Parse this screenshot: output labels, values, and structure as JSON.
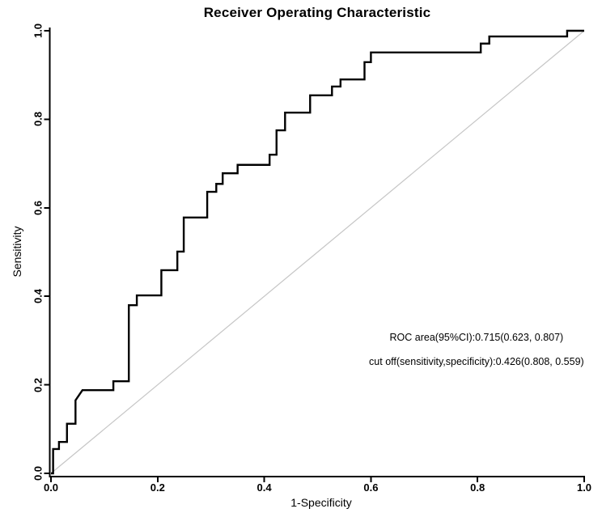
{
  "chart_data": {
    "type": "line",
    "title": "Receiver Operating Characteristic",
    "xlabel": "1-Specificity",
    "ylabel": "Sensitivity",
    "xlim": [
      0,
      1
    ],
    "ylim": [
      0,
      1
    ],
    "grid": false,
    "legend": "none",
    "x_tick_labels": [
      "0.0",
      "0.2",
      "0.4",
      "0.6",
      "0.8",
      "1.0"
    ],
    "y_tick_labels": [
      "0.0",
      "0.2",
      "0.4",
      "0.6",
      "0.8",
      "1.0"
    ],
    "colors": {
      "curve": "#000000",
      "reference_line": "#c6c6c6",
      "axis": "#000000",
      "background": "#ffffff"
    },
    "series": [
      {
        "name": "reference-diagonal",
        "color": "#c6c6c6",
        "stroke_width": 1.2,
        "x": [
          0,
          1
        ],
        "y": [
          0,
          1
        ]
      },
      {
        "name": "roc-curve",
        "color": "#000000",
        "stroke_width": 2.4,
        "x": [
          0.0,
          0.004,
          0.004,
          0.015,
          0.015,
          0.03,
          0.03,
          0.046,
          0.046,
          0.059,
          0.117,
          0.117,
          0.146,
          0.146,
          0.161,
          0.161,
          0.207,
          0.207,
          0.237,
          0.237,
          0.249,
          0.249,
          0.293,
          0.293,
          0.31,
          0.31,
          0.322,
          0.322,
          0.35,
          0.35,
          0.41,
          0.41,
          0.423,
          0.423,
          0.439,
          0.439,
          0.486,
          0.486,
          0.527,
          0.527,
          0.543,
          0.543,
          0.588,
          0.588,
          0.6,
          0.6,
          0.806,
          0.806,
          0.822,
          0.822,
          0.968,
          0.968,
          1.0
        ],
        "y": [
          0.0,
          0.0,
          0.055,
          0.055,
          0.071,
          0.071,
          0.112,
          0.112,
          0.165,
          0.188,
          0.188,
          0.208,
          0.208,
          0.38,
          0.38,
          0.402,
          0.402,
          0.459,
          0.459,
          0.501,
          0.501,
          0.578,
          0.578,
          0.636,
          0.636,
          0.654,
          0.654,
          0.678,
          0.678,
          0.697,
          0.697,
          0.72,
          0.72,
          0.775,
          0.775,
          0.815,
          0.815,
          0.854,
          0.854,
          0.874,
          0.874,
          0.89,
          0.89,
          0.929,
          0.929,
          0.951,
          0.951,
          0.971,
          0.971,
          0.987,
          0.987,
          1.0,
          1.0
        ]
      }
    ],
    "annotations": [
      {
        "text": "ROC area(95%CI):0.715(0.623, 0.807)",
        "x": 0.798,
        "y": 0.307
      },
      {
        "text": "cut off(sensitivity,specificity):0.426(0.808, 0.559)",
        "x": 0.798,
        "y": 0.252
      }
    ],
    "stats": {
      "roc_area": 0.715,
      "ci_low": 0.623,
      "ci_high": 0.807,
      "cut_off": 0.426,
      "sensitivity": 0.808,
      "specificity": 0.559
    }
  }
}
